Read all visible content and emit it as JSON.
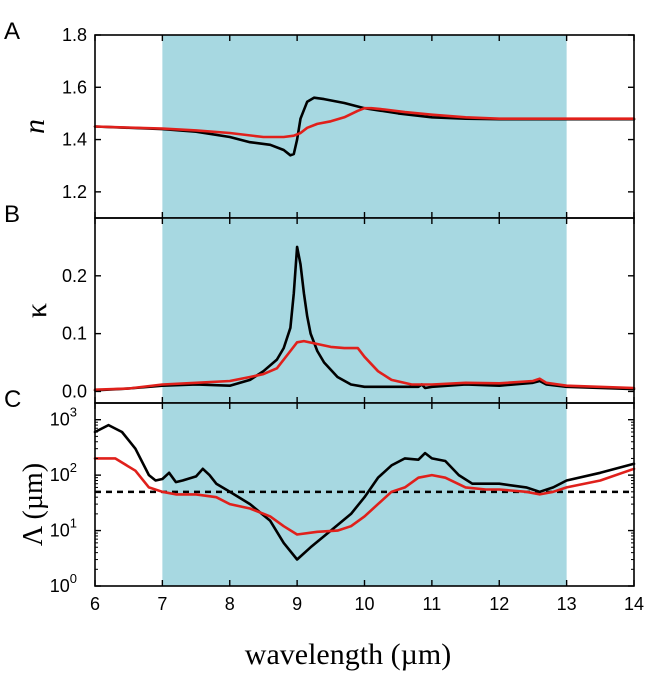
{
  "colors": {
    "band": "#a7d8e1",
    "black_series": "#000000",
    "red_series": "#e0201b"
  },
  "x_axis": {
    "label": "wavelength (µm)",
    "range": [
      6,
      14
    ],
    "ticks": [
      6,
      7,
      8,
      9,
      10,
      11,
      12,
      13,
      14
    ]
  },
  "shaded_band": {
    "x_range": [
      7,
      13
    ]
  },
  "chart_data": [
    {
      "id": "A",
      "type": "line",
      "panel_label": "A",
      "ylabel": "n",
      "ylim": [
        1.1,
        1.8
      ],
      "yscale": "linear",
      "yticks": [
        1.2,
        1.4,
        1.6,
        1.8
      ],
      "ytick_labels": [
        "1.2",
        "1.4",
        "1.6",
        "1.8"
      ],
      "series": [
        {
          "color": "black",
          "x": [
            6.0,
            7.0,
            7.5,
            8.0,
            8.3,
            8.6,
            8.8,
            8.9,
            8.95,
            9.0,
            9.05,
            9.15,
            9.25,
            9.4,
            9.7,
            10.0,
            10.5,
            11.0,
            11.5,
            12.0,
            13.0,
            14.0
          ],
          "y": [
            1.45,
            1.44,
            1.43,
            1.41,
            1.39,
            1.38,
            1.36,
            1.34,
            1.345,
            1.4,
            1.48,
            1.545,
            1.56,
            1.555,
            1.54,
            1.52,
            1.5,
            1.485,
            1.48,
            1.478,
            1.478,
            1.478
          ]
        },
        {
          "color": "red",
          "x": [
            6.0,
            7.0,
            7.5,
            8.0,
            8.5,
            8.8,
            8.95,
            9.05,
            9.15,
            9.3,
            9.5,
            9.7,
            9.9,
            10.0,
            10.1,
            10.3,
            10.6,
            11.0,
            11.5,
            12.0,
            13.0,
            14.0
          ],
          "y": [
            1.45,
            1.442,
            1.435,
            1.425,
            1.41,
            1.41,
            1.415,
            1.425,
            1.445,
            1.46,
            1.47,
            1.485,
            1.51,
            1.52,
            1.52,
            1.515,
            1.505,
            1.495,
            1.485,
            1.48,
            1.48,
            1.48
          ]
        }
      ]
    },
    {
      "id": "B",
      "type": "line",
      "panel_label": "B",
      "ylabel": "κ",
      "ylim": [
        -0.02,
        0.3
      ],
      "yscale": "linear",
      "yticks": [
        0.0,
        0.1,
        0.2
      ],
      "ytick_labels": [
        "0.0",
        "0.1",
        "0.2"
      ],
      "series": [
        {
          "color": "black",
          "x": [
            6.0,
            6.5,
            7.0,
            7.5,
            8.0,
            8.3,
            8.5,
            8.7,
            8.8,
            8.9,
            8.95,
            9.0,
            9.05,
            9.1,
            9.15,
            9.2,
            9.3,
            9.4,
            9.6,
            9.8,
            10.0,
            10.5,
            10.8,
            10.85,
            10.9,
            11.0,
            11.5,
            12.0,
            12.5,
            12.6,
            12.7,
            13.0,
            14.0
          ],
          "y": [
            0.002,
            0.005,
            0.01,
            0.012,
            0.01,
            0.02,
            0.035,
            0.055,
            0.075,
            0.11,
            0.17,
            0.25,
            0.22,
            0.17,
            0.13,
            0.1,
            0.07,
            0.05,
            0.025,
            0.012,
            0.008,
            0.008,
            0.008,
            0.012,
            0.006,
            0.008,
            0.012,
            0.01,
            0.015,
            0.018,
            0.012,
            0.008,
            0.004
          ]
        },
        {
          "color": "red",
          "x": [
            6.0,
            6.5,
            7.0,
            7.5,
            8.0,
            8.3,
            8.5,
            8.7,
            8.9,
            9.0,
            9.1,
            9.3,
            9.5,
            9.7,
            9.9,
            10.0,
            10.2,
            10.4,
            10.7,
            11.0,
            11.5,
            12.0,
            12.5,
            12.6,
            12.7,
            13.0,
            14.0
          ],
          "y": [
            0.003,
            0.005,
            0.012,
            0.015,
            0.018,
            0.025,
            0.03,
            0.04,
            0.07,
            0.085,
            0.087,
            0.082,
            0.077,
            0.075,
            0.075,
            0.06,
            0.035,
            0.02,
            0.012,
            0.012,
            0.015,
            0.014,
            0.018,
            0.022,
            0.015,
            0.01,
            0.006
          ]
        }
      ]
    },
    {
      "id": "C",
      "type": "line",
      "panel_label": "C",
      "ylabel": "Λ (µm)",
      "ylim": [
        1,
        2000
      ],
      "yscale": "log",
      "yticks": [
        1,
        10,
        100,
        1000
      ],
      "ytick_labels": [
        "10",
        "10",
        "10",
        "10"
      ],
      "ytick_exponents": [
        "0",
        "1",
        "2",
        "3"
      ],
      "reference_line": {
        "y": 50,
        "style": "dashed"
      },
      "series": [
        {
          "color": "black",
          "x": [
            6.0,
            6.2,
            6.4,
            6.6,
            6.8,
            6.9,
            7.0,
            7.1,
            7.2,
            7.3,
            7.5,
            7.6,
            7.7,
            7.8,
            8.0,
            8.3,
            8.6,
            8.8,
            9.0,
            9.2,
            9.5,
            9.8,
            10.0,
            10.2,
            10.4,
            10.6,
            10.8,
            10.9,
            11.0,
            11.2,
            11.4,
            11.6,
            12.0,
            12.4,
            12.6,
            12.8,
            13.0,
            13.5,
            14.0
          ],
          "y": [
            600,
            800,
            600,
            300,
            100,
            80,
            85,
            110,
            75,
            80,
            95,
            130,
            100,
            70,
            50,
            30,
            15,
            6,
            3,
            5,
            10,
            20,
            40,
            90,
            150,
            200,
            190,
            250,
            200,
            180,
            100,
            70,
            70,
            60,
            50,
            60,
            80,
            110,
            160
          ]
        },
        {
          "color": "red",
          "x": [
            6.0,
            6.3,
            6.6,
            6.8,
            7.0,
            7.2,
            7.5,
            7.8,
            8.0,
            8.3,
            8.6,
            8.8,
            9.0,
            9.3,
            9.6,
            9.8,
            10.0,
            10.2,
            10.4,
            10.6,
            10.8,
            11.0,
            11.2,
            11.5,
            11.8,
            12.0,
            12.4,
            12.6,
            12.8,
            13.0,
            13.5,
            14.0
          ],
          "y": [
            200,
            200,
            120,
            60,
            50,
            45,
            45,
            40,
            30,
            25,
            18,
            12,
            8.5,
            9.5,
            10,
            12,
            18,
            30,
            50,
            60,
            90,
            100,
            90,
            60,
            55,
            55,
            50,
            45,
            50,
            60,
            80,
            130
          ]
        }
      ]
    }
  ]
}
